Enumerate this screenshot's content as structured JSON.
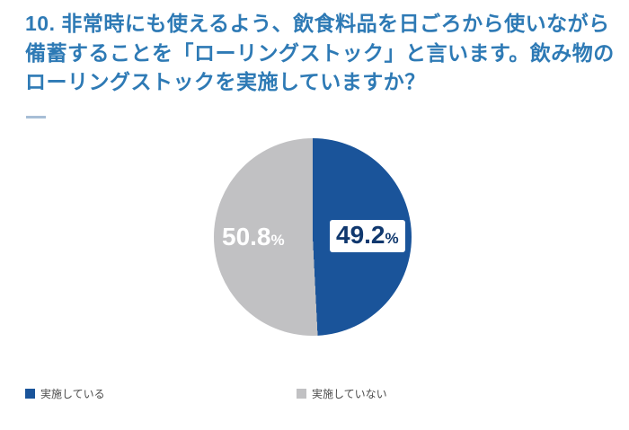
{
  "title": "10. 非常時にも使えるよう、飲食料品を日ごろから使いながら備蓄することを「ローリングストック」と言います。飲み物のローリングストックを実施していますか？",
  "colors": {
    "title_blue": "#2e7ab5",
    "slice_blue": "#1a549a",
    "slice_gray": "#c1c1c3",
    "label_navy": "#10386e"
  },
  "chart_data": {
    "type": "pie",
    "title": "10. 非常時にも使えるよう、飲食料品を日ごろから使いながら備蓄することを「ローリングストック」と言います。飲み物のローリングストックを実施していますか？",
    "categories": [
      "実施している",
      "実施していない"
    ],
    "values": [
      49.2,
      50.8
    ],
    "colors": [
      "#1a549a",
      "#c1c1c3"
    ],
    "start_angle_deg": 0,
    "direction": "clockwise",
    "legend_position": "bottom",
    "labels": [
      {
        "value": "49.2",
        "unit": "%"
      },
      {
        "value": "50.8",
        "unit": "%"
      }
    ]
  },
  "legend": {
    "items": [
      {
        "label": "実施している",
        "color": "#1a549a"
      },
      {
        "label": "実施していない",
        "color": "#c1c1c3"
      }
    ]
  }
}
